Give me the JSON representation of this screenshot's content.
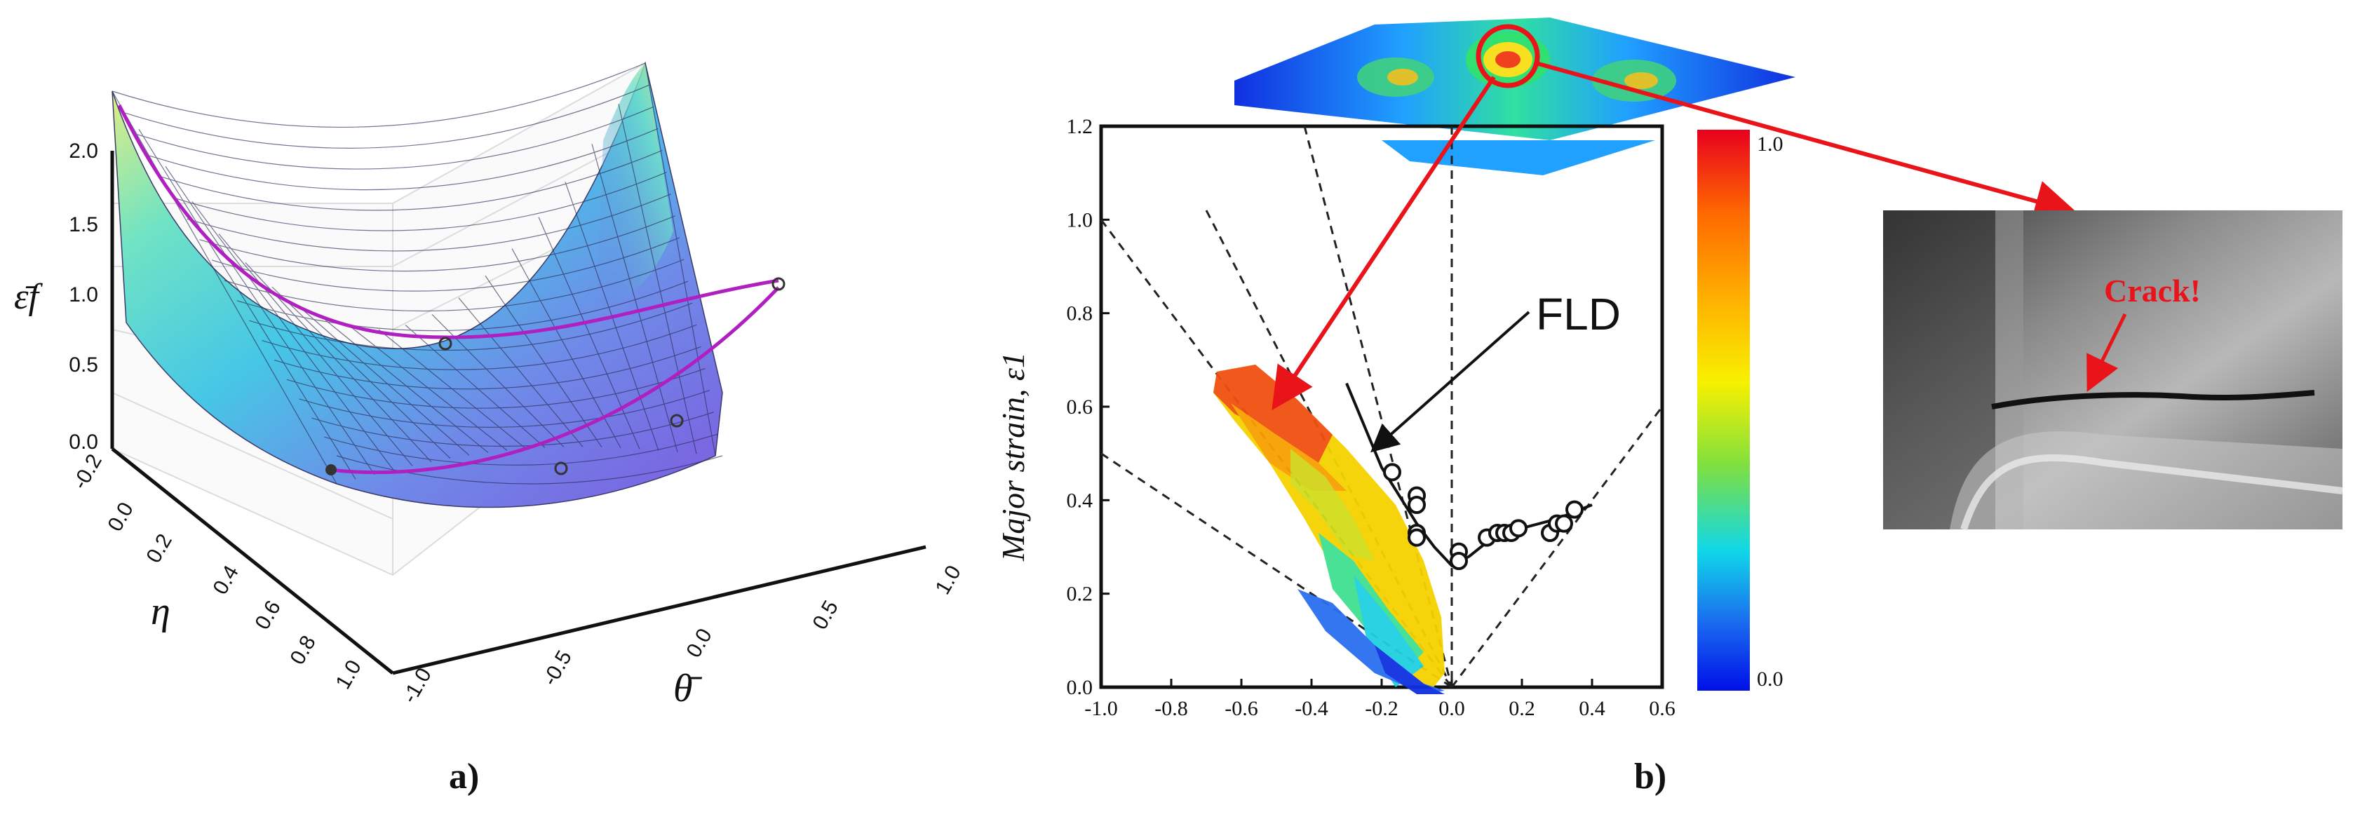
{
  "panel_a": {
    "label": "a)",
    "z_label": "ε̄f",
    "eta_label": "η",
    "theta_label": "θ̄",
    "z_ticks": [
      "2.0",
      "1.5",
      "1.0",
      "0.5",
      "0.0"
    ],
    "eta_ticks": [
      "-0.2",
      "0.0",
      "0.2",
      "0.4",
      "0.6",
      "0.8",
      "1.0"
    ],
    "theta_ticks": [
      "-1.0",
      "-0.5",
      "0.0",
      "0.5",
      "1.0"
    ]
  },
  "panel_b": {
    "label": "b)",
    "fld_label": "FLD",
    "crack_label": "Crack!",
    "colorbar_max": "1.0",
    "colorbar_min": "0.0"
  },
  "chart_data": [
    {
      "type": "surface",
      "zlabel": "ε̄f",
      "xlabel": "θ̄",
      "ylabel": "η",
      "xlim": [
        -1.0,
        1.0
      ],
      "ylim": [
        -0.2,
        1.0
      ],
      "zlim": [
        0.0,
        2.0
      ],
      "colors": {
        "high": "#e8e860",
        "mid": "#3fd0e0",
        "low": "#6a5de0",
        "curve": "#b020c0"
      }
    },
    {
      "type": "scatter",
      "ylabel": "Major strain, ε1",
      "xlim": [
        -1.0,
        0.6
      ],
      "ylim": [
        0.0,
        1.2
      ],
      "x_ticks": [
        -1.0,
        -0.8,
        -0.6,
        -0.4,
        -0.2,
        0.0,
        0.2,
        0.4,
        0.6
      ],
      "y_ticks": [
        0.0,
        0.2,
        0.4,
        0.6,
        0.8,
        1.0,
        1.2
      ],
      "x_tick_labels": [
        "-1.0",
        "-0.8",
        "-0.6",
        "-0.4",
        "-0.2",
        "0.0",
        "0.2",
        "0.4",
        "0.6"
      ],
      "y_tick_labels": [
        "0.0",
        "0.2",
        "0.4",
        "0.6",
        "0.8",
        "1.0",
        "1.2"
      ],
      "fld_curve": [
        [
          -0.3,
          0.65
        ],
        [
          -0.2,
          0.47
        ],
        [
          -0.1,
          0.35
        ],
        [
          -0.05,
          0.3
        ],
        [
          0.0,
          0.26
        ],
        [
          0.05,
          0.28
        ],
        [
          0.1,
          0.31
        ],
        [
          0.2,
          0.34
        ],
        [
          0.3,
          0.36
        ],
        [
          0.4,
          0.39
        ]
      ],
      "fld_points": [
        [
          -0.17,
          0.46
        ],
        [
          -0.1,
          0.41
        ],
        [
          -0.1,
          0.39
        ],
        [
          -0.1,
          0.33
        ],
        [
          -0.1,
          0.32
        ],
        [
          0.02,
          0.29
        ],
        [
          0.02,
          0.27
        ],
        [
          0.1,
          0.32
        ],
        [
          0.13,
          0.33
        ],
        [
          0.15,
          0.33
        ],
        [
          0.17,
          0.33
        ],
        [
          0.19,
          0.34
        ],
        [
          0.28,
          0.33
        ],
        [
          0.3,
          0.35
        ],
        [
          0.32,
          0.35
        ],
        [
          0.35,
          0.38
        ]
      ],
      "reference_lines": [
        [
          [
            -1.0,
            1.0
          ],
          [
            0.0,
            0.0
          ]
        ],
        [
          [
            -0.42,
            1.2
          ],
          [
            0.0,
            0.0
          ]
        ],
        [
          [
            -0.7,
            1.02
          ],
          [
            0.0,
            0.0
          ]
        ],
        [
          [
            -1.0,
            0.5
          ],
          [
            0.0,
            0.0
          ]
        ],
        [
          [
            0.0,
            1.2
          ],
          [
            0.0,
            0.0
          ]
        ],
        [
          [
            0.0,
            0.0
          ],
          [
            0.6,
            0.6
          ]
        ]
      ]
    }
  ]
}
